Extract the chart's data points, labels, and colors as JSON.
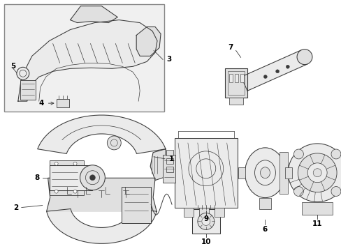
{
  "bg_color": "#ffffff",
  "line_color": "#3a3a3a",
  "fill_color": "#f5f5f5",
  "fill_dark": "#e0e0e0",
  "fill_mid": "#ebebeb",
  "box_fill": "#f0f0f0",
  "box_edge": "#888888",
  "fig_width": 4.89,
  "fig_height": 3.6,
  "dpi": 100,
  "label_fontsize": 7.5,
  "arrow_lw": 0.7
}
